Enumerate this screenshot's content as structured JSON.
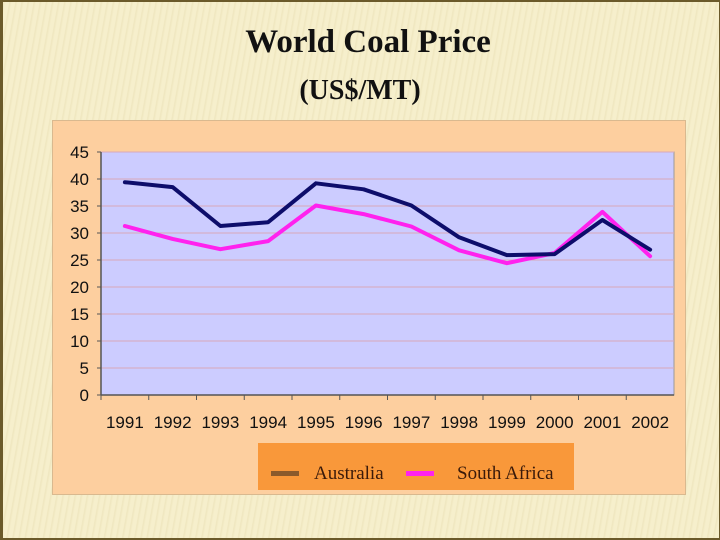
{
  "slide": {
    "title": "World Coal Price",
    "subtitle": "(US$/MT)"
  },
  "colors": {
    "plot_background": "#ccccff",
    "chart_background": "#fdcf9f",
    "legend_background": "#f9983a",
    "australia_line": "#0d0d6b",
    "australia_legend_swatch": "#8b5a2b",
    "south_africa_line": "#ff22ee"
  },
  "legend": {
    "items": [
      {
        "label": "Australia",
        "color": "#8b5a2b"
      },
      {
        "label": "South Africa",
        "color": "#ff22ee"
      }
    ]
  },
  "chart_data": {
    "type": "line",
    "title": "World Coal Price",
    "subtitle": "(US$/MT)",
    "xlabel": "",
    "ylabel": "",
    "categories": [
      "1991",
      "1992",
      "1993",
      "1994",
      "1995",
      "1996",
      "1997",
      "1998",
      "1999",
      "2000",
      "2001",
      "2002"
    ],
    "series": [
      {
        "name": "Australia",
        "color": "#0d0d6b",
        "values": [
          39.4,
          38.5,
          31.3,
          32.0,
          39.2,
          38.1,
          35.1,
          29.2,
          25.9,
          26.1,
          32.4,
          26.9
        ]
      },
      {
        "name": "South Africa",
        "color": "#ff22ee",
        "values": [
          31.3,
          28.9,
          27.0,
          28.5,
          35.1,
          33.5,
          31.2,
          26.8,
          24.4,
          26.3,
          33.9,
          25.7
        ]
      }
    ],
    "yticks": [
      0,
      5,
      10,
      15,
      20,
      25,
      30,
      35,
      40,
      45
    ],
    "ylim": [
      0,
      45
    ],
    "grid": true,
    "legend_position": "bottom"
  }
}
